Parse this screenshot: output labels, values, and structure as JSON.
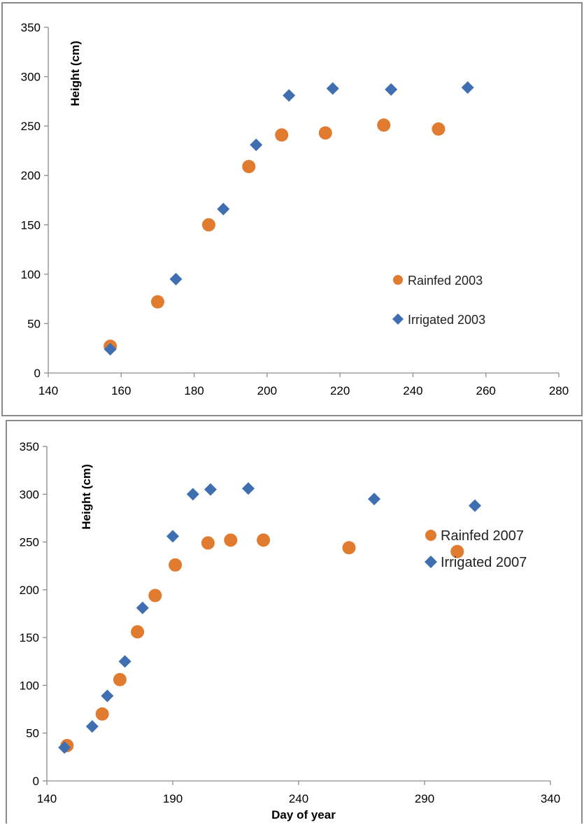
{
  "colors": {
    "rainfed": "#e07b30",
    "irrigated": "#3f6fb0",
    "axis": "#8c8c8c"
  },
  "chart_data": [
    {
      "type": "scatter",
      "title": "",
      "xlabel": "",
      "ylabel": "Height (cm)",
      "xlim": [
        140,
        280
      ],
      "ylim": [
        0,
        350
      ],
      "xticks": [
        140,
        160,
        180,
        200,
        220,
        240,
        260,
        280
      ],
      "yticks": [
        0,
        50,
        100,
        150,
        200,
        250,
        300,
        350
      ],
      "legend_position": "middle-right",
      "series": [
        {
          "name": "Rainfed 2003",
          "marker": "circle",
          "color": "#e07b30",
          "points": [
            [
              157,
              27
            ],
            [
              170,
              72
            ],
            [
              184,
              150
            ],
            [
              195,
              209
            ],
            [
              204,
              241
            ],
            [
              216,
              243
            ],
            [
              232,
              251
            ],
            [
              247,
              247
            ]
          ]
        },
        {
          "name": "Irrigated 2003",
          "marker": "diamond",
          "color": "#3f6fb0",
          "points": [
            [
              157,
              24
            ],
            [
              175,
              95
            ],
            [
              188,
              166
            ],
            [
              197,
              231
            ],
            [
              206,
              281
            ],
            [
              218,
              288
            ],
            [
              234,
              287
            ],
            [
              255,
              289
            ]
          ]
        }
      ]
    },
    {
      "type": "scatter",
      "title": "",
      "xlabel": "Day of year",
      "ylabel": "Height (cm)",
      "xlim": [
        140,
        340
      ],
      "ylim": [
        0,
        350
      ],
      "xticks": [
        140,
        190,
        240,
        290,
        340
      ],
      "yticks": [
        0,
        50,
        100,
        150,
        200,
        250,
        300,
        350
      ],
      "legend_position": "bottom-right",
      "series": [
        {
          "name": "Rainfed 2007",
          "marker": "circle",
          "color": "#e07b30",
          "points": [
            [
              148,
              37
            ],
            [
              162,
              70
            ],
            [
              169,
              106
            ],
            [
              176,
              156
            ],
            [
              183,
              194
            ],
            [
              191,
              226
            ],
            [
              204,
              249
            ],
            [
              213,
              252
            ],
            [
              226,
              252
            ],
            [
              260,
              244
            ],
            [
              303,
              240
            ]
          ]
        },
        {
          "name": "Irrigated 2007",
          "marker": "diamond",
          "color": "#3f6fb0",
          "points": [
            [
              147,
              35
            ],
            [
              158,
              57
            ],
            [
              164,
              89
            ],
            [
              171,
              125
            ],
            [
              178,
              181
            ],
            [
              190,
              256
            ],
            [
              198,
              300
            ],
            [
              205,
              305
            ],
            [
              220,
              306
            ],
            [
              270,
              295
            ],
            [
              310,
              288
            ]
          ]
        }
      ]
    }
  ]
}
